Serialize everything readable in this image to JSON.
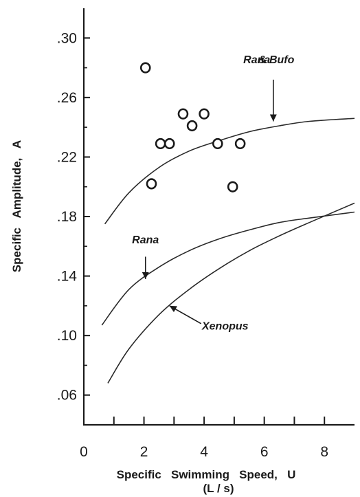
{
  "chart_data": {
    "type": "scatter",
    "xlabel": "Specific   Swimming   Speed,   U",
    "xunit": "(L / s)",
    "ylabel": "Specific   Amplitude,   A",
    "xlim": [
      0,
      9
    ],
    "ylim": [
      0.04,
      0.32
    ],
    "x_ticks": [
      {
        "value": 0,
        "label": "0"
      },
      {
        "value": 2,
        "label": "2"
      },
      {
        "value": 4,
        "label": "4"
      },
      {
        "value": 6,
        "label": "6"
      },
      {
        "value": 8,
        "label": "8"
      }
    ],
    "x_minor_ticks": [
      1,
      3,
      5,
      7
    ],
    "y_ticks": [
      {
        "value": 0.06,
        "label": ".06"
      },
      {
        "value": 0.1,
        "label": ".10"
      },
      {
        "value": 0.14,
        "label": ".14"
      },
      {
        "value": 0.18,
        "label": ".18"
      },
      {
        "value": 0.22,
        "label": ".22"
      },
      {
        "value": 0.26,
        "label": ".26"
      },
      {
        "value": 0.3,
        "label": ".30"
      }
    ],
    "grid": false,
    "points": [
      {
        "x": 2.05,
        "y": 0.28
      },
      {
        "x": 2.25,
        "y": 0.202
      },
      {
        "x": 2.55,
        "y": 0.229
      },
      {
        "x": 2.85,
        "y": 0.229
      },
      {
        "x": 3.3,
        "y": 0.249
      },
      {
        "x": 3.6,
        "y": 0.241
      },
      {
        "x": 4.0,
        "y": 0.249
      },
      {
        "x": 4.45,
        "y": 0.229
      },
      {
        "x": 4.95,
        "y": 0.2
      },
      {
        "x": 5.2,
        "y": 0.229
      }
    ],
    "curves": [
      {
        "x": [
          0.7,
          1.5,
          2.5,
          3.5,
          4.5,
          5.5,
          6.5,
          7.5,
          9.0
        ],
        "y": [
          0.175,
          0.196,
          0.213,
          0.224,
          0.231,
          0.237,
          0.241,
          0.244,
          0.246
        ]
      },
      {
        "x": [
          0.6,
          1.5,
          2.5,
          3.5,
          4.5,
          5.5,
          6.5,
          7.5,
          9.0
        ],
        "y": [
          0.107,
          0.131,
          0.146,
          0.157,
          0.165,
          0.171,
          0.176,
          0.179,
          0.183
        ]
      },
      {
        "x": [
          0.8,
          1.5,
          2.5,
          3.5,
          4.5,
          5.5,
          6.5,
          7.5,
          9.0
        ],
        "y": [
          0.068,
          0.091,
          0.114,
          0.131,
          0.145,
          0.157,
          0.167,
          0.176,
          0.189
        ]
      }
    ],
    "annotations": [
      {
        "text": "Rana",
        "style": "italic",
        "x": 5.75,
        "y": 0.283
      },
      {
        "text": "& Bufo",
        "style": "italic",
        "x": 6.4,
        "y": 0.283
      },
      {
        "text": "Rana",
        "style": "italic",
        "x": 2.05,
        "y": 0.162
      },
      {
        "text": "Xenopus",
        "style": "italic",
        "x": 4.7,
        "y": 0.104
      }
    ],
    "arrows": [
      {
        "from": [
          6.3,
          0.272
        ],
        "to": [
          6.3,
          0.244
        ]
      },
      {
        "from": [
          2.05,
          0.153
        ],
        "to": [
          2.05,
          0.138
        ]
      },
      {
        "from": [
          3.9,
          0.108
        ],
        "to": [
          2.85,
          0.12
        ]
      }
    ],
    "colors": {
      "ink": "#1a1a1a",
      "background": "#ffffff"
    }
  }
}
